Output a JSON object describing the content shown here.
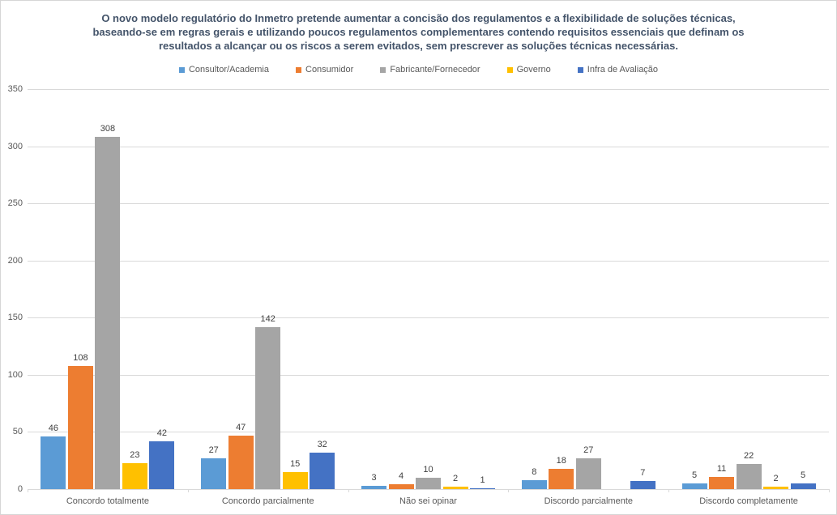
{
  "chart_title": {
    "lines": [
      "O novo modelo regulatório do Inmetro pretende aumentar a concisão dos regulamentos e a flexibilidade de soluções técnicas,",
      "baseando-se em regras gerais e utilizando poucos regulamentos complementares contendo requisitos essenciais que definam os",
      "resultados a alcançar ou os riscos a serem evitados, sem prescrever as soluções técnicas necessárias."
    ],
    "color": "#44546A"
  },
  "style": {
    "background": "#ffffff",
    "border_color": "#d6d6d6",
    "gridline_color": "#d9d9d9",
    "axis_text_color": "#595959",
    "data_label_color": "#404040"
  },
  "chart_data": {
    "type": "bar",
    "title": "O novo modelo regulatório do Inmetro pretende aumentar a concisão dos regulamentos e a flexibilidade de soluções técnicas, baseando-se em regras gerais e utilizando poucos regulamentos complementares contendo requisitos essenciais que definam os resultados a alcançar ou os riscos a serem evitados, sem prescrever as soluções técnicas necessárias.",
    "categories": [
      "Concordo totalmente",
      "Concordo parcialmente",
      "Não sei opinar",
      "Discordo parcialmente",
      "Discordo completamente"
    ],
    "series": [
      {
        "name": "Consultor/Academia",
        "color": "#5B9BD5",
        "values": [
          46,
          27,
          3,
          8,
          5
        ]
      },
      {
        "name": "Consumidor",
        "color": "#ED7D31",
        "values": [
          108,
          47,
          4,
          18,
          11
        ]
      },
      {
        "name": "Fabricante/Fornecedor",
        "color": "#A5A5A5",
        "values": [
          308,
          142,
          10,
          27,
          22
        ]
      },
      {
        "name": "Governo",
        "color": "#FFC000",
        "values": [
          23,
          15,
          2,
          null,
          2
        ]
      },
      {
        "name": "Infra de Avaliação",
        "color": "#4472C4",
        "values": [
          42,
          32,
          1,
          7,
          5
        ]
      }
    ],
    "xlabel": "",
    "ylabel": "",
    "ylim": [
      0,
      350
    ],
    "ytick_step": 50,
    "grid": true,
    "legend_position": "top",
    "data_labels": true
  }
}
